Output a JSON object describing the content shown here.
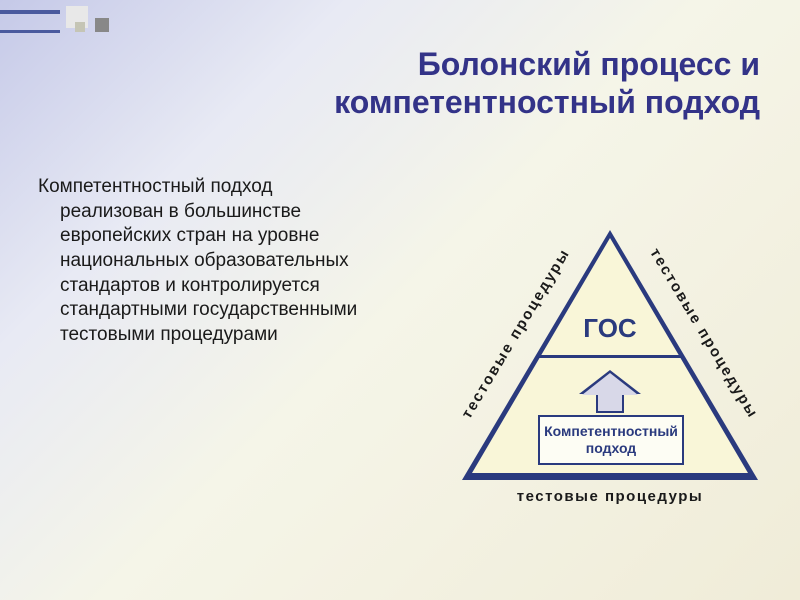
{
  "title_line1": "Болонский процесс и",
  "title_line2": "компетентностный подход",
  "title_color": "#333388",
  "body_text": "Компетентностный подход реализован в большинстве европейских стран на уровне национальных образовательных стандартов и контролируется стандартными государственными тестовыми процедурами",
  "body_color": "#1a1a1a",
  "triangle": {
    "border_color": "#2a3a7e",
    "fill_color": "#f9f6d8",
    "divider_color": "#2a3a7e",
    "top_label": "ГОС",
    "top_label_color": "#2a3a7e",
    "box_label_line1": "Компетентностный",
    "box_label_line2": "подход",
    "box_border_color": "#2a3a7e",
    "box_bg_color": "#fdfdf4",
    "box_text_color": "#2a3a7e",
    "side_label": "тестовые процедуры",
    "side_label_color": "#1a1a1a"
  }
}
